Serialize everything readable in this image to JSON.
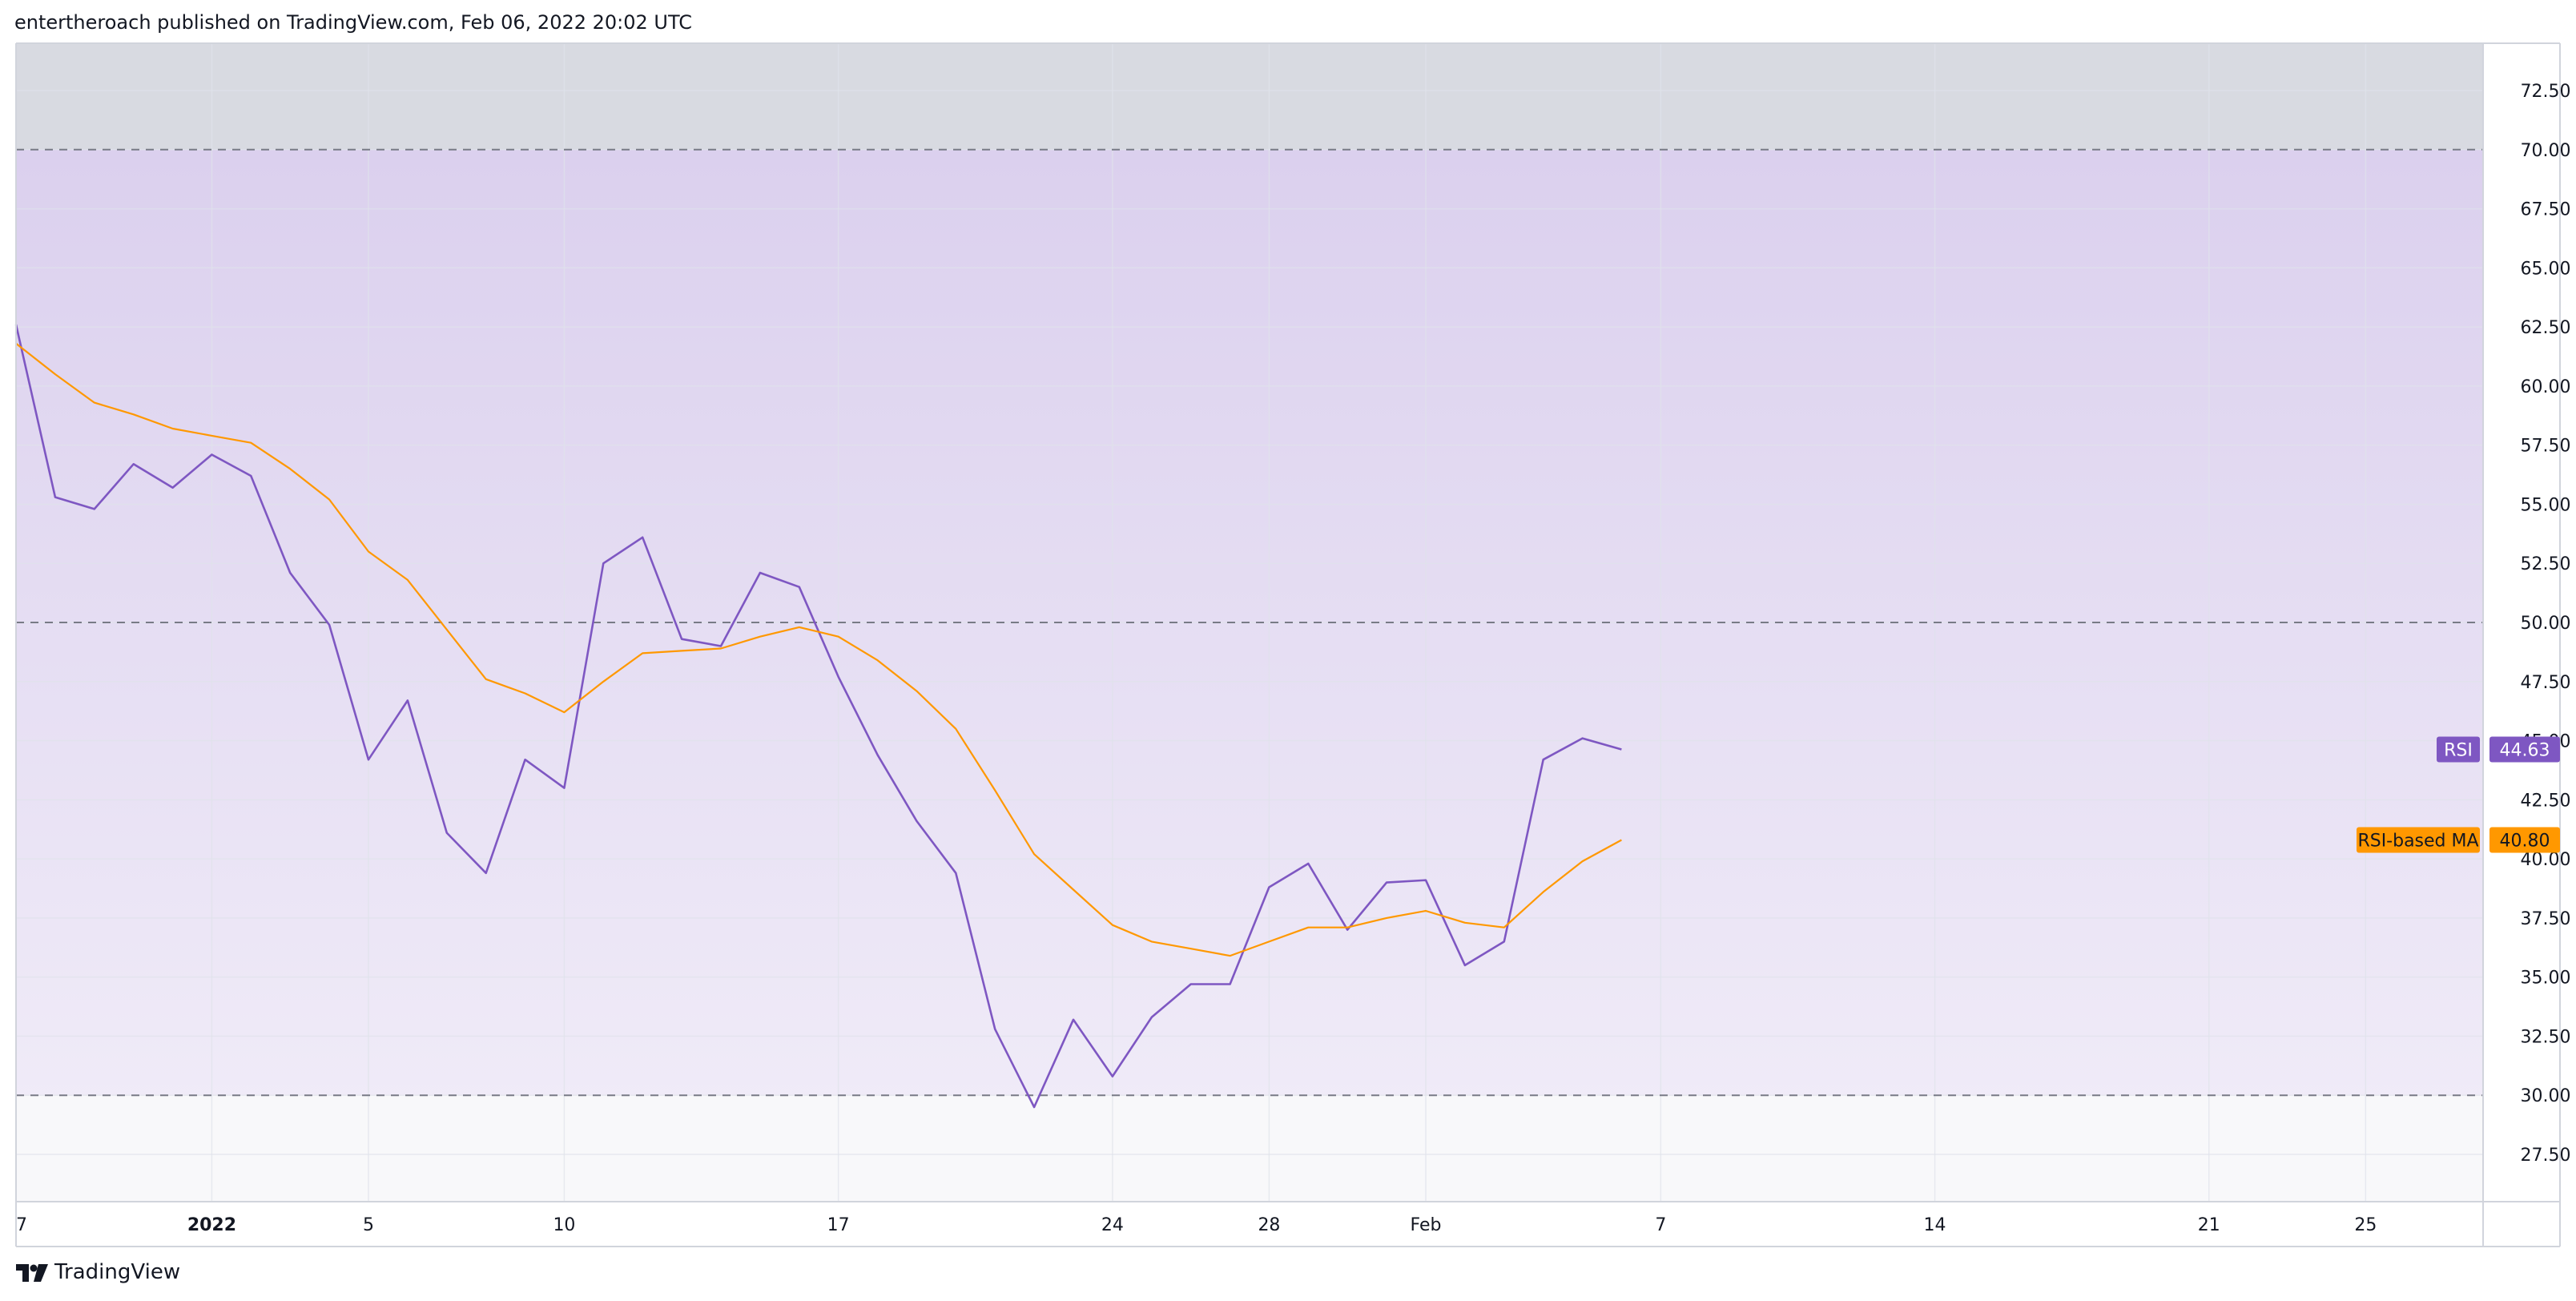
{
  "header": {
    "publisher_text": "entertheroach published on TradingView.com, Feb 06, 2022 20:02 UTC"
  },
  "footer": {
    "brand": "TradingView",
    "logo_icon": "tradingview-logo-icon"
  },
  "colors": {
    "rsi": "#7e57c2",
    "ma": "#ff9800",
    "band_fill": "#7e57c2",
    "level_line": "#787b86",
    "grid": "#e0e3eb",
    "axis_border": "#d1d4dc"
  },
  "chart_data": {
    "type": "line",
    "ylim": [
      25.5,
      74.5
    ],
    "y_ticks": [
      "72.50",
      "70.00",
      "67.50",
      "65.00",
      "62.50",
      "60.00",
      "57.50",
      "55.00",
      "52.50",
      "50.00",
      "47.50",
      "45.00",
      "42.50",
      "40.00",
      "37.50",
      "35.00",
      "32.50",
      "30.00",
      "27.50"
    ],
    "y_tick_values": [
      72.5,
      70,
      67.5,
      65,
      62.5,
      60,
      57.5,
      55,
      52.5,
      50,
      47.5,
      45,
      42.5,
      40,
      37.5,
      35,
      32.5,
      30,
      27.5
    ],
    "levels": [
      70,
      50,
      30
    ],
    "band": [
      30,
      70
    ],
    "xlim": [
      0,
      63
    ],
    "x_ticks": [
      {
        "label": "7",
        "x": 0,
        "bold": false
      },
      {
        "label": "2022",
        "x": 5,
        "bold": true
      },
      {
        "label": "5",
        "x": 9,
        "bold": false
      },
      {
        "label": "10",
        "x": 14,
        "bold": false
      },
      {
        "label": "17",
        "x": 21,
        "bold": false
      },
      {
        "label": "24",
        "x": 28,
        "bold": false
      },
      {
        "label": "28",
        "x": 32,
        "bold": false
      },
      {
        "label": "Feb",
        "x": 36,
        "bold": false
      },
      {
        "label": "7",
        "x": 42,
        "bold": false
      },
      {
        "label": "14",
        "x": 49,
        "bold": false
      },
      {
        "label": "21",
        "x": 56,
        "bold": false
      },
      {
        "label": "25",
        "x": 60,
        "bold": false
      }
    ],
    "series": [
      {
        "name": "RSI",
        "color": "#7e57c2",
        "x": [
          0,
          1,
          2,
          3,
          4,
          5,
          6,
          7,
          8,
          9,
          10,
          11,
          12,
          13,
          14,
          15,
          16,
          17,
          18,
          19,
          20,
          21,
          22,
          23,
          24,
          25,
          26,
          27,
          28,
          29,
          30,
          31,
          32,
          33,
          34,
          35,
          36,
          37,
          38,
          39,
          40,
          41
        ],
        "values": [
          62.6,
          55.3,
          54.8,
          56.7,
          55.7,
          57.1,
          56.2,
          52.1,
          49.9,
          44.2,
          46.7,
          41.1,
          39.4,
          44.2,
          43.0,
          52.5,
          53.6,
          49.3,
          49.0,
          52.1,
          51.5,
          47.7,
          44.4,
          41.6,
          39.4,
          32.8,
          29.5,
          33.2,
          30.8,
          33.3,
          34.7,
          34.7,
          38.8,
          39.8,
          37.0,
          39.0,
          39.1,
          35.5,
          36.5,
          44.2,
          45.1,
          44.63
        ]
      },
      {
        "name": "RSI-based MA",
        "color": "#ff9800",
        "x": [
          0,
          1,
          2,
          3,
          4,
          5,
          6,
          7,
          8,
          9,
          10,
          11,
          12,
          13,
          14,
          15,
          16,
          17,
          18,
          19,
          20,
          21,
          22,
          23,
          24,
          25,
          26,
          27,
          28,
          29,
          30,
          31,
          32,
          33,
          34,
          35,
          36,
          37,
          38,
          39,
          40,
          41
        ],
        "values": [
          61.8,
          60.5,
          59.3,
          58.8,
          58.2,
          57.9,
          57.6,
          56.5,
          55.2,
          53.0,
          51.8,
          49.7,
          47.6,
          47.0,
          46.2,
          47.5,
          48.7,
          48.8,
          48.9,
          49.4,
          49.8,
          49.4,
          48.4,
          47.1,
          45.5,
          42.9,
          40.2,
          38.7,
          37.2,
          36.5,
          36.2,
          35.9,
          36.5,
          37.1,
          37.1,
          37.5,
          37.8,
          37.3,
          37.1,
          38.6,
          39.9,
          40.8
        ]
      }
    ],
    "last_value_labels": [
      {
        "name": "RSI",
        "value": "44.63",
        "color": "#7e57c2"
      },
      {
        "name": "RSI-based MA",
        "value": "40.80",
        "color": "#ff9800"
      }
    ]
  }
}
